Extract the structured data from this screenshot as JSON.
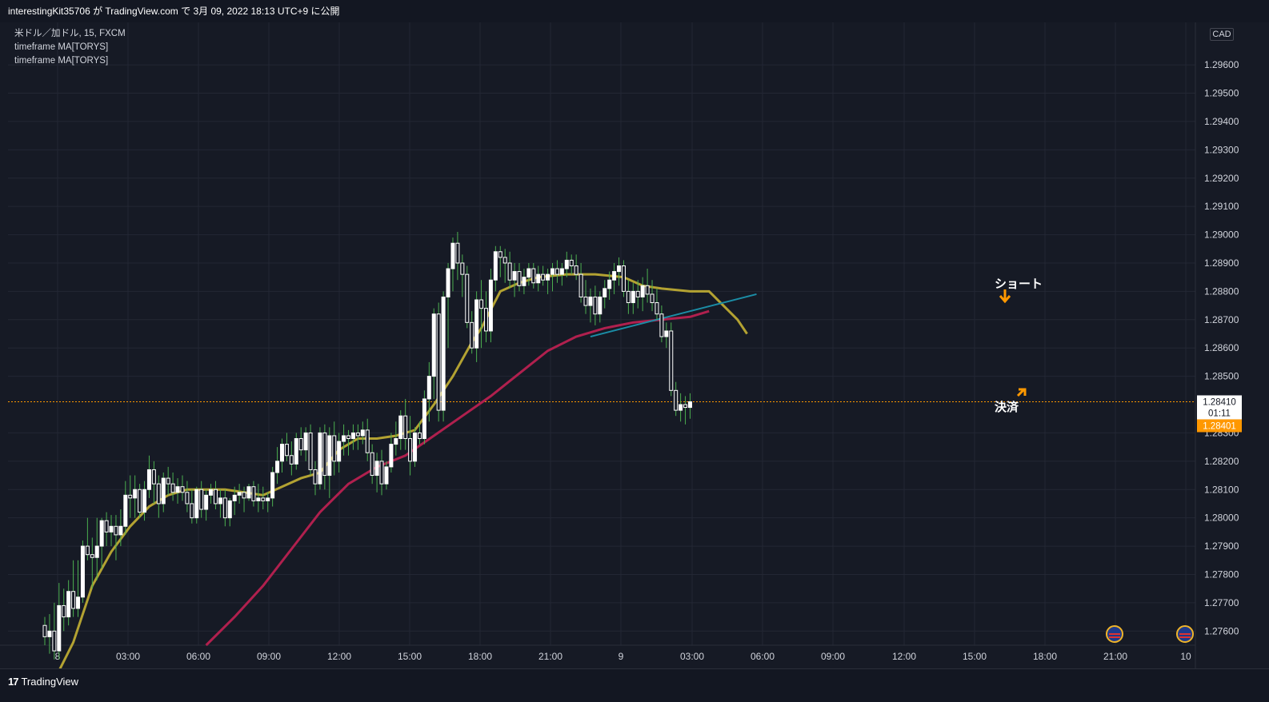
{
  "header": {
    "publish_text": "interestingKit35706 が TradingView.com で 3月 09, 2022 18:13 UTC+9 に公開"
  },
  "legend": {
    "symbol_line": "米ドル／加ドル, 15, FXCM",
    "indicator_1": "timeframe MA[TORYS]",
    "indicator_2": "timeframe MA[TORYS]"
  },
  "axis": {
    "currency": "CAD",
    "current_price": "1.28410",
    "countdown": "01:11",
    "marker_price": "1.28401"
  },
  "annotations": {
    "short_label": "ショート",
    "exit_label": "決済"
  },
  "footer": {
    "brand": "TradingView"
  },
  "colors": {
    "background": "#161a25",
    "grid": "#232734",
    "bull_candle": "#ffffff",
    "bull_wick": "#4caf50",
    "ma_fast": "#b3a232",
    "ma_slow": "#b0204e",
    "trendline": "#1b8da6",
    "price_line": "#ff9800",
    "arrow": "#ff9800"
  },
  "chart_data": {
    "type": "candlestick",
    "title": "米ドル／加ドル, 15, FXCM",
    "y_range": [
      1.2755,
      1.2975
    ],
    "y_ticks": [
      "1.29600",
      "1.29500",
      "1.29400",
      "1.29300",
      "1.29200",
      "1.29100",
      "1.29000",
      "1.28900",
      "1.28800",
      "1.28700",
      "1.28600",
      "1.28500",
      "1.28300",
      "1.28200",
      "1.28100",
      "1.28000",
      "1.27900",
      "1.27800",
      "1.27700",
      "1.27600"
    ],
    "x_ticks": [
      "8",
      "03:00",
      "06:00",
      "09:00",
      "12:00",
      "15:00",
      "18:00",
      "21:00",
      "9",
      "03:00",
      "06:00",
      "09:00",
      "12:00",
      "15:00",
      "18:00",
      "21:00",
      "10"
    ],
    "price_line": 1.2841,
    "ma_fast": [
      [
        0,
        1.2736
      ],
      [
        6,
        1.2756
      ],
      [
        10,
        1.2776
      ],
      [
        14,
        1.2788
      ],
      [
        18,
        1.2797
      ],
      [
        22,
        1.2804
      ],
      [
        26,
        1.2808
      ],
      [
        30,
        1.281
      ],
      [
        34,
        1.281
      ],
      [
        38,
        1.281
      ],
      [
        42,
        1.2809
      ],
      [
        46,
        1.2808
      ],
      [
        50,
        1.2811
      ],
      [
        54,
        1.2814
      ],
      [
        58,
        1.2816
      ],
      [
        62,
        1.2824
      ],
      [
        66,
        1.2828
      ],
      [
        70,
        1.2828
      ],
      [
        74,
        1.2829
      ],
      [
        78,
        1.2831
      ],
      [
        82,
        1.284
      ],
      [
        86,
        1.285
      ],
      [
        90,
        1.2862
      ],
      [
        92,
        1.2867
      ],
      [
        96,
        1.288
      ],
      [
        100,
        1.2883
      ],
      [
        104,
        1.2885
      ],
      [
        110,
        1.2886
      ],
      [
        116,
        1.2886
      ],
      [
        122,
        1.2885
      ],
      [
        126,
        1.2882
      ],
      [
        130,
        1.2881
      ],
      [
        136,
        1.288
      ],
      [
        140,
        1.288
      ],
      [
        146,
        1.287
      ],
      [
        148,
        1.2865
      ]
    ],
    "ma_slow": [
      [
        34,
        1.2755
      ],
      [
        40,
        1.2765
      ],
      [
        46,
        1.2776
      ],
      [
        52,
        1.2789
      ],
      [
        58,
        1.2802
      ],
      [
        64,
        1.2812
      ],
      [
        70,
        1.2818
      ],
      [
        76,
        1.2822
      ],
      [
        82,
        1.2829
      ],
      [
        88,
        1.2836
      ],
      [
        94,
        1.2843
      ],
      [
        100,
        1.2851
      ],
      [
        106,
        1.2859
      ],
      [
        112,
        1.2864
      ],
      [
        118,
        1.2867
      ],
      [
        124,
        1.2869
      ],
      [
        130,
        1.287
      ],
      [
        136,
        1.2871
      ],
      [
        140,
        1.2873
      ]
    ],
    "trendline": [
      [
        115,
        1.2864
      ],
      [
        150,
        1.2879
      ]
    ],
    "candles": [
      [
        1.2762,
        1.2765,
        1.2755,
        1.2758
      ],
      [
        1.2758,
        1.2766,
        1.2752,
        1.276
      ],
      [
        1.276,
        1.277,
        1.275,
        1.2753
      ],
      [
        1.2753,
        1.2777,
        1.275,
        1.2769
      ],
      [
        1.2769,
        1.2775,
        1.276,
        1.2765
      ],
      [
        1.2765,
        1.2778,
        1.2762,
        1.2774
      ],
      [
        1.2774,
        1.2785,
        1.2765,
        1.2768
      ],
      [
        1.2768,
        1.2785,
        1.2765,
        1.2772
      ],
      [
        1.2772,
        1.2792,
        1.277,
        1.279
      ],
      [
        1.279,
        1.28,
        1.2785,
        1.2787
      ],
      [
        1.2787,
        1.2793,
        1.2775,
        1.2786
      ],
      [
        1.2786,
        1.28,
        1.2778,
        1.279
      ],
      [
        1.279,
        1.28,
        1.2782,
        1.2799
      ],
      [
        1.2799,
        1.2802,
        1.279,
        1.2795
      ],
      [
        1.2795,
        1.2801,
        1.279,
        1.2797
      ],
      [
        1.2797,
        1.2801,
        1.2785,
        1.2794
      ],
      [
        1.2794,
        1.2803,
        1.279,
        1.2797
      ],
      [
        1.2797,
        1.2813,
        1.2794,
        1.2808
      ],
      [
        1.2808,
        1.2815,
        1.28,
        1.2807
      ],
      [
        1.2807,
        1.2815,
        1.28,
        1.281
      ],
      [
        1.281,
        1.2812,
        1.28,
        1.2802
      ],
      [
        1.2802,
        1.2813,
        1.2799,
        1.281
      ],
      [
        1.281,
        1.2822,
        1.2807,
        1.2817
      ],
      [
        1.2817,
        1.282,
        1.2805,
        1.2812
      ],
      [
        1.2812,
        1.2815,
        1.28,
        1.2805
      ],
      [
        1.2805,
        1.2816,
        1.2802,
        1.2814
      ],
      [
        1.2814,
        1.2818,
        1.2808,
        1.2812
      ],
      [
        1.2812,
        1.2816,
        1.2806,
        1.2809
      ],
      [
        1.2809,
        1.2814,
        1.2805,
        1.2811
      ],
      [
        1.2811,
        1.2815,
        1.2806,
        1.2809
      ],
      [
        1.2809,
        1.2813,
        1.2802,
        1.2805
      ],
      [
        1.2805,
        1.281,
        1.2798,
        1.28
      ],
      [
        1.28,
        1.2811,
        1.2798,
        1.281
      ],
      [
        1.281,
        1.2813,
        1.28,
        1.2803
      ],
      [
        1.2803,
        1.281,
        1.2799,
        1.2808
      ],
      [
        1.2808,
        1.2812,
        1.2805,
        1.281
      ],
      [
        1.281,
        1.2813,
        1.2803,
        1.2805
      ],
      [
        1.2805,
        1.281,
        1.28,
        1.2807
      ],
      [
        1.2807,
        1.281,
        1.2797,
        1.28
      ],
      [
        1.28,
        1.2807,
        1.2797,
        1.2806
      ],
      [
        1.2806,
        1.2811,
        1.2801,
        1.2808
      ],
      [
        1.2808,
        1.2812,
        1.2805,
        1.2809
      ],
      [
        1.2809,
        1.2811,
        1.2802,
        1.2807
      ],
      [
        1.2807,
        1.2812,
        1.2806,
        1.2811
      ],
      [
        1.2811,
        1.2813,
        1.2804,
        1.2806
      ],
      [
        1.2806,
        1.2812,
        1.2802,
        1.2807
      ],
      [
        1.2807,
        1.2811,
        1.2803,
        1.2806
      ],
      [
        1.2806,
        1.2809,
        1.2802,
        1.2807
      ],
      [
        1.2807,
        1.2818,
        1.2804,
        1.2816
      ],
      [
        1.2816,
        1.2825,
        1.2812,
        1.282
      ],
      [
        1.282,
        1.2828,
        1.2816,
        1.2826
      ],
      [
        1.2826,
        1.283,
        1.282,
        1.2822
      ],
      [
        1.2822,
        1.2827,
        1.2815,
        1.2819
      ],
      [
        1.2819,
        1.283,
        1.2817,
        1.2828
      ],
      [
        1.2828,
        1.2832,
        1.2822,
        1.2824
      ],
      [
        1.2824,
        1.2832,
        1.282,
        1.283
      ],
      [
        1.283,
        1.2833,
        1.2815,
        1.2817
      ],
      [
        1.2817,
        1.282,
        1.2808,
        1.2812
      ],
      [
        1.2812,
        1.2832,
        1.281,
        1.283
      ],
      [
        1.283,
        1.2833,
        1.281,
        1.2815
      ],
      [
        1.2815,
        1.2832,
        1.2807,
        1.2829
      ],
      [
        1.2829,
        1.2834,
        1.2815,
        1.282
      ],
      [
        1.282,
        1.283,
        1.2816,
        1.2827
      ],
      [
        1.2827,
        1.2833,
        1.2822,
        1.2829
      ],
      [
        1.2829,
        1.2831,
        1.2822,
        1.2828
      ],
      [
        1.2828,
        1.2833,
        1.2824,
        1.283
      ],
      [
        1.283,
        1.2833,
        1.2824,
        1.2829
      ],
      [
        1.2829,
        1.2834,
        1.2826,
        1.2831
      ],
      [
        1.2831,
        1.2835,
        1.282,
        1.2823
      ],
      [
        1.2823,
        1.2826,
        1.2812,
        1.2815
      ],
      [
        1.2815,
        1.2823,
        1.2809,
        1.282
      ],
      [
        1.282,
        1.2824,
        1.2808,
        1.2812
      ],
      [
        1.2812,
        1.282,
        1.281,
        1.2818
      ],
      [
        1.2818,
        1.283,
        1.2816,
        1.2826
      ],
      [
        1.2826,
        1.2834,
        1.2822,
        1.2828
      ],
      [
        1.2828,
        1.2838,
        1.2824,
        1.2836
      ],
      [
        1.2836,
        1.2842,
        1.2824,
        1.2828
      ],
      [
        1.2828,
        1.2836,
        1.2815,
        1.282
      ],
      [
        1.282,
        1.2832,
        1.2818,
        1.283
      ],
      [
        1.283,
        1.2834,
        1.2826,
        1.2828
      ],
      [
        1.2828,
        1.2845,
        1.2826,
        1.2842
      ],
      [
        1.2842,
        1.2855,
        1.2834,
        1.285
      ],
      [
        1.285,
        1.2874,
        1.2842,
        1.2872
      ],
      [
        1.2872,
        1.2876,
        1.2834,
        1.2838
      ],
      [
        1.2838,
        1.288,
        1.2834,
        1.2878
      ],
      [
        1.2878,
        1.289,
        1.286,
        1.2888
      ],
      [
        1.2888,
        1.2899,
        1.288,
        1.2897
      ],
      [
        1.2897,
        1.2901,
        1.2884,
        1.289
      ],
      [
        1.289,
        1.2893,
        1.2878,
        1.2886
      ],
      [
        1.2886,
        1.2889,
        1.2867,
        1.2869
      ],
      [
        1.2869,
        1.2873,
        1.2858,
        1.286
      ],
      [
        1.286,
        1.288,
        1.2855,
        1.2877
      ],
      [
        1.2877,
        1.2884,
        1.286,
        1.2874
      ],
      [
        1.2874,
        1.288,
        1.2862,
        1.2866
      ],
      [
        1.2866,
        1.2888,
        1.2862,
        1.2884
      ],
      [
        1.2884,
        1.2896,
        1.288,
        1.2894
      ],
      [
        1.2894,
        1.2896,
        1.2885,
        1.2892
      ],
      [
        1.2892,
        1.2895,
        1.2883,
        1.289
      ],
      [
        1.289,
        1.2894,
        1.2881,
        1.2884
      ],
      [
        1.2884,
        1.289,
        1.2878,
        1.2887
      ],
      [
        1.2887,
        1.289,
        1.288,
        1.2882
      ],
      [
        1.2882,
        1.2888,
        1.2879,
        1.2885
      ],
      [
        1.2885,
        1.289,
        1.2882,
        1.2888
      ],
      [
        1.2888,
        1.289,
        1.2881,
        1.2883
      ],
      [
        1.2883,
        1.2889,
        1.288,
        1.2886
      ],
      [
        1.2886,
        1.2889,
        1.2882,
        1.2884
      ],
      [
        1.2884,
        1.2888,
        1.2879,
        1.2886
      ],
      [
        1.2886,
        1.289,
        1.288,
        1.2888
      ],
      [
        1.2888,
        1.2891,
        1.2883,
        1.2886
      ],
      [
        1.2886,
        1.289,
        1.2882,
        1.2888
      ],
      [
        1.2888,
        1.2894,
        1.2885,
        1.2891
      ],
      [
        1.2891,
        1.2893,
        1.2886,
        1.2889
      ],
      [
        1.2889,
        1.2893,
        1.2884,
        1.2886
      ],
      [
        1.2886,
        1.289,
        1.2876,
        1.2878
      ],
      [
        1.2878,
        1.2884,
        1.2872,
        1.2875
      ],
      [
        1.2875,
        1.2881,
        1.2869,
        1.2878
      ],
      [
        1.2878,
        1.2882,
        1.2868,
        1.2872
      ],
      [
        1.2872,
        1.288,
        1.2869,
        1.2878
      ],
      [
        1.2878,
        1.2884,
        1.2874,
        1.2881
      ],
      [
        1.2881,
        1.2887,
        1.2877,
        1.2884
      ],
      [
        1.2884,
        1.289,
        1.2879,
        1.2887
      ],
      [
        1.2887,
        1.2892,
        1.2882,
        1.2889
      ],
      [
        1.2889,
        1.2891,
        1.2878,
        1.288
      ],
      [
        1.288,
        1.2884,
        1.2872,
        1.2876
      ],
      [
        1.2876,
        1.2883,
        1.2872,
        1.288
      ],
      [
        1.288,
        1.2884,
        1.2874,
        1.2878
      ],
      [
        1.2878,
        1.2885,
        1.2873,
        1.2882
      ],
      [
        1.2882,
        1.2888,
        1.2876,
        1.2879
      ],
      [
        1.2879,
        1.2884,
        1.2873,
        1.2876
      ],
      [
        1.2876,
        1.2881,
        1.287,
        1.2872
      ],
      [
        1.2872,
        1.2875,
        1.2862,
        1.2864
      ],
      [
        1.2864,
        1.2869,
        1.286,
        1.2866
      ],
      [
        1.2866,
        1.2869,
        1.2843,
        1.2845
      ],
      [
        1.2845,
        1.2848,
        1.2836,
        1.2838
      ],
      [
        1.2838,
        1.2844,
        1.2834,
        1.284
      ],
      [
        1.284,
        1.2843,
        1.2833,
        1.2839
      ],
      [
        1.2839,
        1.2844,
        1.2835,
        1.2841
      ]
    ]
  }
}
